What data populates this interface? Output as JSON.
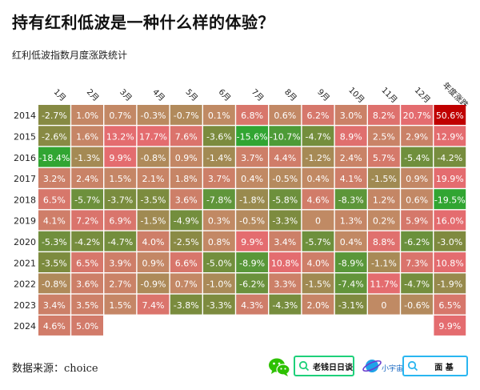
{
  "title": "持有红利低波是一种什么样的体验？",
  "subtitle": "红利低波指数月度涨跌统计",
  "source_text": "数据来源：choice",
  "footer": {
    "channel1": "老钱日日谈",
    "planet_label": "小宇宙",
    "channel2": "面 基"
  },
  "colors": {
    "red_extreme": "#c00000",
    "red": "#e46c6f",
    "neutral": "#c08a64",
    "green": "#31a532",
    "olive": "#7f8a3f"
  },
  "chart_data": {
    "type": "heatmap",
    "title": "红利低波指数月度涨跌统计",
    "columns": [
      "1月",
      "2月",
      "3月",
      "4月",
      "5月",
      "6月",
      "7月",
      "8月",
      "9月",
      "10月",
      "11月",
      "12月",
      "年度涨跌"
    ],
    "rows": [
      "2014",
      "2015",
      "2016",
      "2017",
      "2018",
      "2019",
      "2020",
      "2021",
      "2022",
      "2023",
      "2024"
    ],
    "unit": "%",
    "values": [
      [
        -2.7,
        1.0,
        0.7,
        -0.3,
        -0.7,
        0.1,
        6.8,
        0.6,
        6.2,
        3.0,
        8.2,
        20.7,
        50.6
      ],
      [
        -2.6,
        1.6,
        13.2,
        17.7,
        7.6,
        -3.6,
        -15.6,
        -10.7,
        -4.7,
        8.9,
        2.5,
        2.9,
        12.9
      ],
      [
        -18.4,
        -1.3,
        9.9,
        -0.8,
        0.9,
        -1.4,
        3.7,
        4.4,
        -1.2,
        2.4,
        5.7,
        -5.4,
        -4.2
      ],
      [
        3.2,
        2.4,
        1.5,
        2.1,
        1.8,
        3.7,
        0.4,
        -0.5,
        0.4,
        4.1,
        -1.5,
        0.9,
        19.9
      ],
      [
        6.5,
        -5.7,
        -3.7,
        -3.5,
        3.6,
        -7.8,
        -1.8,
        -5.8,
        4.6,
        -8.3,
        1.2,
        0.6,
        -19.5
      ],
      [
        4.1,
        7.2,
        6.9,
        -1.5,
        -4.9,
        0.3,
        -0.5,
        -3.3,
        0,
        1.3,
        0.2,
        5.9,
        16.0
      ],
      [
        -5.3,
        -4.2,
        -4.7,
        4.0,
        -2.5,
        0.8,
        9.9,
        3.4,
        -5.7,
        0.4,
        8.8,
        -6.2,
        -3.0
      ],
      [
        -3.5,
        6.5,
        3.9,
        0.9,
        6.6,
        -5.0,
        -8.9,
        10.8,
        4.0,
        -8.9,
        -1.1,
        7.3,
        10.8
      ],
      [
        -0.8,
        3.6,
        2.7,
        -0.9,
        0.7,
        -1.0,
        -6.2,
        3.3,
        -1.5,
        -7.4,
        11.7,
        -4.7,
        -1.9
      ],
      [
        3.4,
        3.5,
        1.5,
        7.4,
        -3.8,
        -3.3,
        4.3,
        -4.3,
        2.0,
        -3.1,
        0,
        -0.6,
        6.5
      ],
      [
        4.6,
        5.0,
        null,
        null,
        null,
        null,
        null,
        null,
        null,
        null,
        null,
        null,
        9.9
      ]
    ]
  }
}
